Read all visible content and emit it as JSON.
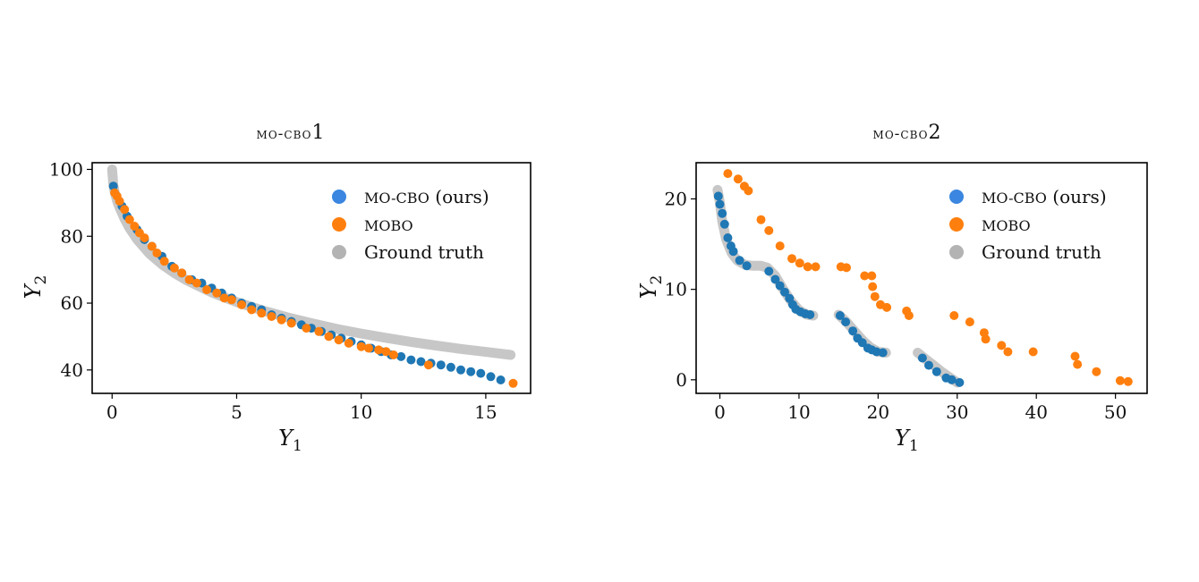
{
  "chart_data": [
    {
      "type": "scatter",
      "title": "MO-CBO1",
      "xlabel": "Y",
      "xlabel_sub": "1",
      "ylabel": "Y",
      "ylabel_sub": "2",
      "xlim": [
        -0.8,
        16.8
      ],
      "ylim": [
        33,
        102
      ],
      "xticks": [
        0,
        5,
        10,
        15
      ],
      "yticks": [
        40,
        60,
        80,
        100
      ],
      "legend": "top-right",
      "series": [
        {
          "name": "Ground truth",
          "color": "#c7c7c7",
          "style": "curve",
          "x": [
            0,
            0.05,
            0.1,
            0.2,
            0.3,
            0.5,
            0.7,
            1,
            1.5,
            2,
            2.5,
            3,
            4,
            5,
            6,
            7,
            8,
            9,
            10,
            11,
            12,
            13,
            14,
            15,
            16
          ],
          "y": [
            100,
            95.2,
            93.3,
            90.6,
            88.6,
            85.2,
            82.4,
            79.1,
            74.8,
            71.6,
            69,
            66.8,
            63.2,
            60.3,
            57.9,
            55.8,
            54,
            52.3,
            50.9,
            49.6,
            48.4,
            47.3,
            46.3,
            45.4,
            44.5
          ]
        },
        {
          "name": "MO-CBO (ours)",
          "color": "#1f77b4",
          "x": [
            0.05,
            0.4,
            0.6,
            1,
            1.3,
            1.6,
            2,
            2.4,
            2.8,
            3.2,
            3.6,
            4,
            4.4,
            4.8,
            5.2,
            5.6,
            6,
            6.4,
            6.8,
            7.2,
            7.6,
            8,
            8.4,
            8.8,
            9.2,
            9.6,
            10,
            10.4,
            10.8,
            11.2,
            11.6,
            12,
            12.4,
            12.8,
            13.2,
            13.6,
            14,
            14.4,
            14.8,
            15.2,
            15.6
          ],
          "y": [
            95,
            89,
            86,
            82,
            79,
            77,
            74,
            71,
            69,
            67,
            66,
            64.5,
            63,
            61.5,
            60,
            59,
            58,
            56.5,
            55.5,
            54.5,
            53.5,
            52.5,
            51.5,
            50.5,
            49.5,
            48.5,
            47.5,
            46.5,
            45.5,
            44.5,
            44,
            43,
            42.5,
            42,
            41.5,
            40.8,
            40,
            39.5,
            39,
            38,
            37
          ]
        },
        {
          "name": "MOBO",
          "color": "#ff7f0e",
          "x": [
            0.1,
            0.2,
            0.3,
            0.5,
            0.7,
            0.9,
            1.1,
            1.3,
            1.6,
            1.8,
            2.1,
            2.5,
            2.8,
            3.1,
            3.4,
            3.8,
            4.2,
            4.5,
            4.8,
            5.2,
            5.6,
            6,
            6.4,
            6.8,
            7.2,
            7.8,
            8.3,
            8.7,
            9.1,
            9.5,
            10,
            10.3,
            10.7,
            11,
            11.3,
            12.7,
            16.1
          ],
          "y": [
            93,
            92,
            90.5,
            88,
            85,
            83,
            81,
            79.5,
            77,
            75,
            72.5,
            70.5,
            69,
            67,
            66,
            64,
            63,
            61.5,
            61,
            59.5,
            58,
            57,
            56,
            55,
            54,
            52.5,
            51.5,
            50,
            49,
            48,
            47,
            46.5,
            46,
            45.5,
            44.5,
            41.5,
            36
          ]
        }
      ]
    },
    {
      "type": "scatter",
      "title": "MO-CBO2",
      "xlabel": "Y",
      "xlabel_sub": "1",
      "ylabel": "Y",
      "ylabel_sub": "2",
      "xlim": [
        -3,
        54
      ],
      "ylim": [
        -1.5,
        24
      ],
      "xticks": [
        0,
        10,
        20,
        30,
        40,
        50
      ],
      "yticks": [
        0,
        10,
        20
      ],
      "legend": "top-right",
      "series": [
        {
          "name": "Ground truth",
          "color": "#c7c7c7",
          "style": "curve",
          "segments": [
            {
              "x": [
                -0.3,
                0,
                0.3,
                0.8,
                1.5,
                2.2,
                3.2,
                4.2,
                5.2,
                6,
                7,
                8,
                9,
                10,
                11,
                11.8
              ],
              "y": [
                21,
                19.6,
                17.5,
                15.5,
                14,
                13.2,
                12.7,
                12.6,
                12.6,
                12.4,
                11.5,
                10,
                8.7,
                7.7,
                7.2,
                7.1
              ]
            },
            {
              "x": [
                15,
                16,
                17,
                18,
                19,
                20,
                21
              ],
              "y": [
                7.2,
                6.4,
                5.4,
                4.4,
                3.6,
                3.1,
                3
              ]
            },
            {
              "x": [
                25,
                26,
                27,
                28,
                29,
                30
              ],
              "y": [
                3,
                2.3,
                1.6,
                0.9,
                0.3,
                -0.3
              ]
            }
          ]
        },
        {
          "name": "MO-CBO (ours)",
          "color": "#1f77b4",
          "x": [
            -0.2,
            0,
            0.3,
            0.6,
            1,
            1.4,
            1.7,
            2.5,
            3.4,
            6.2,
            7,
            7.6,
            8.2,
            8.8,
            9.2,
            9.6,
            10.2,
            10.8,
            11.4,
            15.2,
            15.9,
            16.8,
            17.4,
            18,
            18.7,
            19.2,
            19.8,
            20.6,
            25.6,
            26.4,
            27.4,
            28.6,
            29.3,
            30.3
          ],
          "y": [
            20.3,
            19.4,
            18.4,
            17.2,
            15.7,
            14.8,
            14.2,
            13.2,
            12.6,
            12,
            11.1,
            10.4,
            9.7,
            9,
            8.3,
            7.8,
            7.5,
            7.3,
            7.2,
            7.1,
            6.4,
            5.4,
            4.6,
            4.1,
            3.5,
            3.3,
            3.1,
            3,
            2.4,
            1.6,
            0.9,
            0.2,
            0,
            -0.3
          ]
        },
        {
          "name": "MOBO",
          "color": "#ff7f0e",
          "x": [
            1,
            2.3,
            3.1,
            3.6,
            5.2,
            6.2,
            7.6,
            9.1,
            10.1,
            11.1,
            12.1,
            15.3,
            16,
            18.3,
            19.2,
            19.3,
            19.6,
            20.3,
            21.1,
            23.6,
            23.9,
            29.6,
            31.6,
            33.4,
            33.6,
            35.6,
            36.4,
            39.6,
            44.9,
            45.2,
            47.6,
            50.6,
            51.6
          ],
          "y": [
            22.8,
            22.2,
            21.4,
            20.9,
            17.7,
            16.5,
            14.8,
            13.4,
            12.9,
            12.5,
            12.5,
            12.5,
            12.4,
            11.5,
            11.5,
            10.3,
            9.2,
            8.3,
            8,
            7.6,
            7.1,
            7.1,
            6.4,
            5.2,
            4.5,
            3.8,
            3.1,
            3.1,
            2.6,
            1.7,
            0.9,
            -0.1,
            -0.2
          ]
        }
      ]
    }
  ],
  "legend_order": [
    "MO-CBO (ours)",
    "MOBO",
    "Ground truth"
  ]
}
